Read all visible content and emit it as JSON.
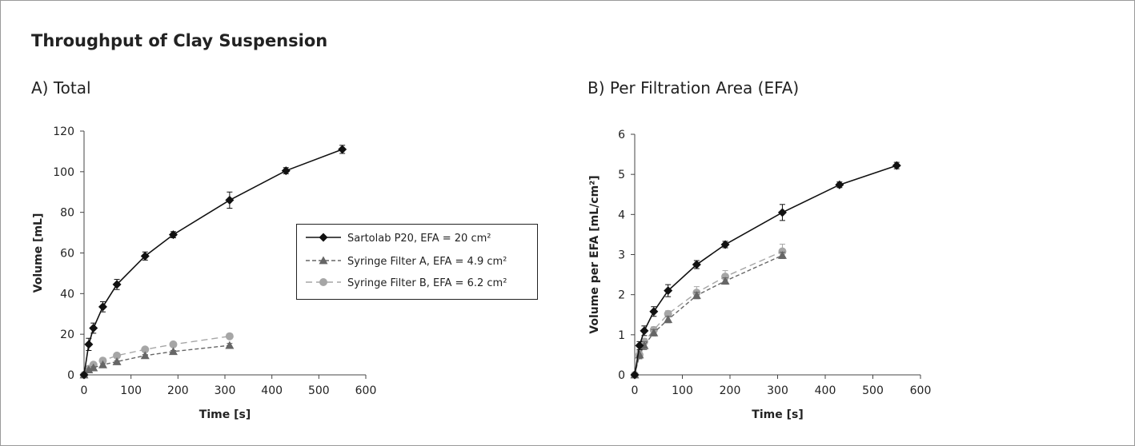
{
  "figure": {
    "title": "Throughput of Clay Suspension",
    "panel_a_title": "A) Total",
    "panel_b_title": "B) Per Filtration Area (EFA)"
  },
  "legend": {
    "items": [
      "Sartolab P20, EFA = 20 cm²",
      "Syringe Filter A, EFA = 4.9 cm²",
      "Syringe Filter B, EFA = 6.2 cm²"
    ]
  },
  "colors": {
    "sartolab": "#111111",
    "filter_a": "#666666",
    "filter_b": "#a6a6a6"
  },
  "chart_data": [
    {
      "type": "line",
      "title": "A) Total",
      "xlabel": "Time [s]",
      "ylabel": "Volume [mL]",
      "xlim": [
        0,
        600
      ],
      "ylim": [
        0,
        120
      ],
      "xticks": [
        0,
        100,
        200,
        300,
        400,
        500,
        600
      ],
      "yticks": [
        0,
        20,
        40,
        60,
        80,
        100,
        120
      ],
      "grid": false,
      "legend_position": "center-right",
      "series": [
        {
          "name": "Sartolab P20, EFA = 20 cm²",
          "marker": "diamond",
          "line": "solid",
          "color": "#111111",
          "x": [
            0,
            10,
            20,
            40,
            70,
            130,
            190,
            310,
            430,
            550
          ],
          "y": [
            0,
            15,
            23,
            33.5,
            44.5,
            58.5,
            69,
            86,
            100.5,
            111
          ],
          "err": [
            0,
            3,
            2.5,
            2.5,
            2.5,
            2,
            1.5,
            4,
            1.5,
            2
          ]
        },
        {
          "name": "Syringe Filter A, EFA = 4.9 cm²",
          "marker": "triangle",
          "line": "dashed",
          "color": "#666666",
          "x": [
            0,
            10,
            20,
            40,
            70,
            130,
            190,
            310
          ],
          "y": [
            0,
            2.5,
            3.5,
            5,
            6.5,
            9.5,
            11.5,
            14.5
          ],
          "err": [
            0,
            0.5,
            0.5,
            0.5,
            0.5,
            0.5,
            0.5,
            1
          ]
        },
        {
          "name": "Syringe Filter B, EFA = 6.2 cm²",
          "marker": "circle",
          "line": "dashed",
          "color": "#a6a6a6",
          "x": [
            0,
            10,
            20,
            40,
            70,
            130,
            190,
            310
          ],
          "y": [
            0,
            3,
            5,
            7,
            9.5,
            12.5,
            15,
            19
          ],
          "err": [
            0,
            0.5,
            0.5,
            0.5,
            0.5,
            0.5,
            0.5,
            0.5
          ]
        }
      ]
    },
    {
      "type": "line",
      "title": "B) Per Filtration Area (EFA)",
      "xlabel": "Time [s]",
      "ylabel": "Volume per EFA [mL/cm²]",
      "xlim": [
        0,
        600
      ],
      "ylim": [
        0,
        6
      ],
      "xticks": [
        0,
        100,
        200,
        300,
        400,
        500,
        600
      ],
      "yticks": [
        0,
        1,
        2,
        3,
        4,
        5,
        6
      ],
      "grid": false,
      "series": [
        {
          "name": "Sartolab P20, EFA = 20 cm²",
          "marker": "diamond",
          "line": "solid",
          "color": "#111111",
          "x": [
            0,
            10,
            20,
            40,
            70,
            130,
            190,
            310,
            430,
            550
          ],
          "y": [
            0,
            0.73,
            1.1,
            1.58,
            2.1,
            2.75,
            3.25,
            4.05,
            4.74,
            5.22
          ],
          "err": [
            0,
            0.1,
            0.12,
            0.12,
            0.15,
            0.1,
            0.08,
            0.2,
            0.07,
            0.08
          ]
        },
        {
          "name": "Syringe Filter A, EFA = 4.9 cm²",
          "marker": "triangle",
          "line": "dashed",
          "color": "#666666",
          "x": [
            0,
            10,
            20,
            40,
            70,
            130,
            190,
            310
          ],
          "y": [
            0,
            0.5,
            0.73,
            1.05,
            1.38,
            1.98,
            2.34,
            2.98
          ],
          "err": [
            0,
            0.1,
            0.1,
            0.08,
            0.08,
            0.08,
            0.08,
            0.08
          ]
        },
        {
          "name": "Syringe Filter B, EFA = 6.2 cm²",
          "marker": "circle",
          "line": "dashed",
          "color": "#a6a6a6",
          "x": [
            0,
            10,
            20,
            40,
            70,
            130,
            190,
            310
          ],
          "y": [
            0,
            0.5,
            0.83,
            1.12,
            1.52,
            2.05,
            2.45,
            3.08
          ],
          "err": [
            0,
            0.08,
            0.08,
            0.08,
            0.08,
            0.15,
            0.15,
            0.18
          ]
        }
      ]
    }
  ]
}
